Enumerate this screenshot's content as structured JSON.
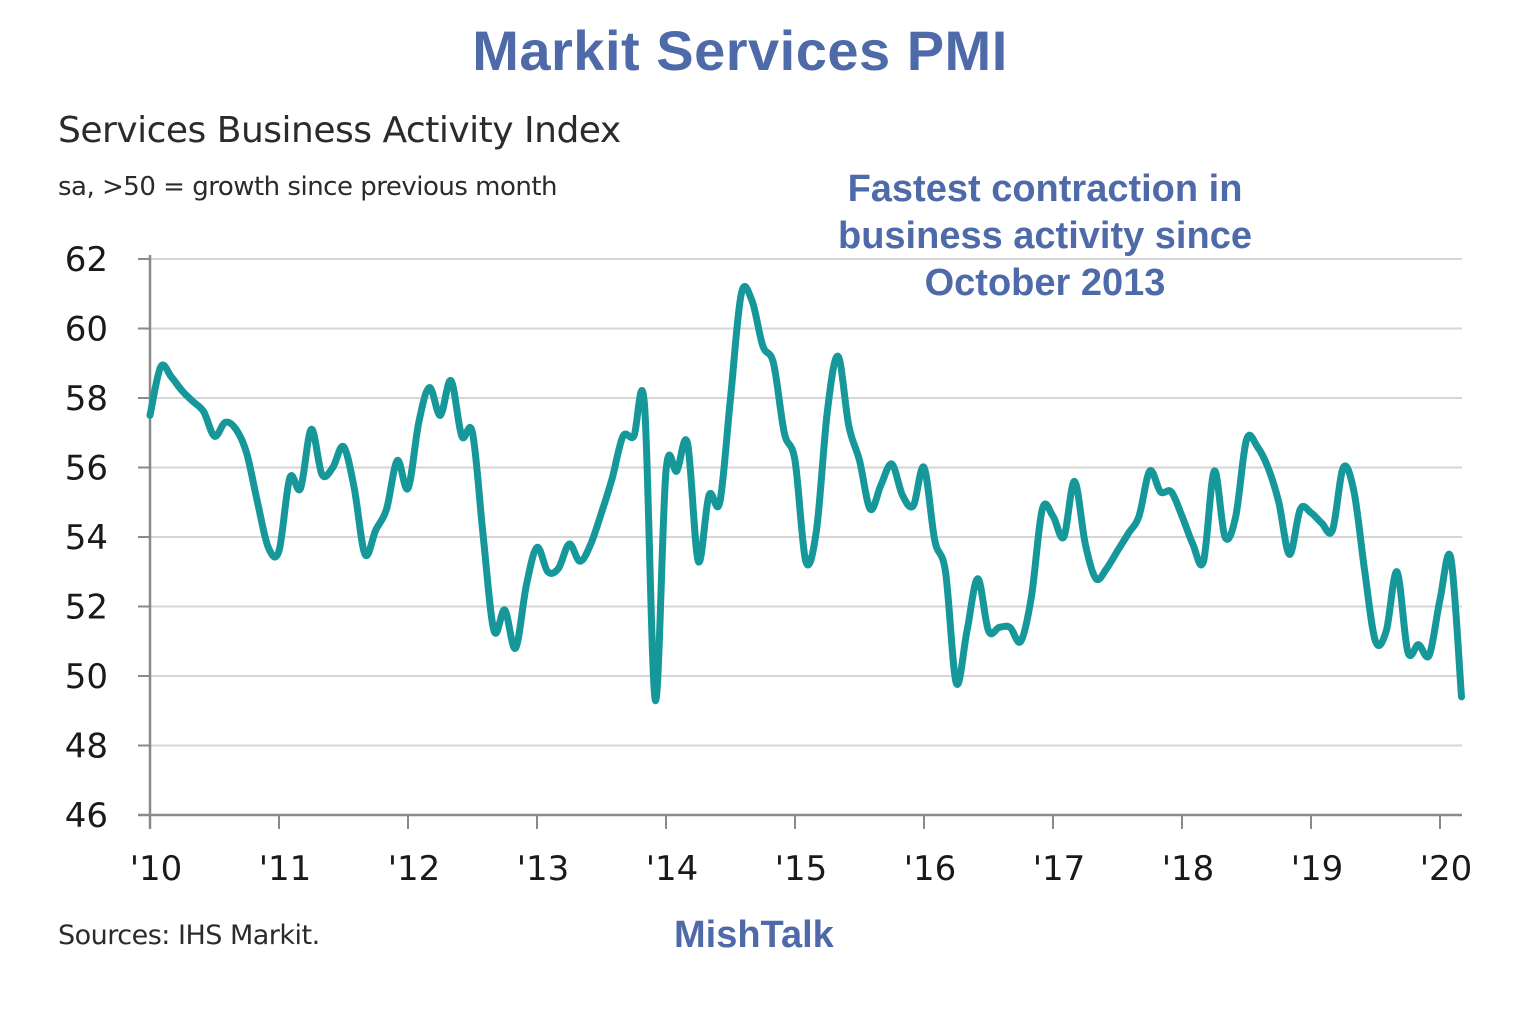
{
  "header": {
    "title": "Markit Services PMI"
  },
  "chart_data": {
    "type": "line",
    "title": "Services Business Activity Index",
    "subtitle": "sa, >50 = growth since previous month",
    "annotation": [
      "Fastest contraction in",
      "business activity since",
      "October 2013"
    ],
    "source": "Sources: IHS Markit.",
    "watermark": "MishTalk",
    "xlabel": "",
    "ylabel": "",
    "ylim": [
      46,
      62
    ],
    "yticks": [
      62,
      60,
      58,
      56,
      54,
      52,
      50,
      48,
      46
    ],
    "grid": true,
    "legend": "none",
    "x_start": "2010-01",
    "x_frequency": "monthly",
    "xtick_labels": [
      "'10",
      "'11",
      "'12",
      "'13",
      "'14",
      "'15",
      "'16",
      "'17",
      "'18",
      "'19",
      "'20"
    ],
    "line_color": "#16989a",
    "series": [
      {
        "name": "Services Business Activity Index",
        "values": [
          57.5,
          58.9,
          58.6,
          58.2,
          57.9,
          57.6,
          56.9,
          57.3,
          57.1,
          56.4,
          55.0,
          53.7,
          53.6,
          55.7,
          55.4,
          57.1,
          55.8,
          56.0,
          56.6,
          55.4,
          53.5,
          54.2,
          54.8,
          56.2,
          55.4,
          57.3,
          58.3,
          57.5,
          58.5,
          56.9,
          57.0,
          54.0,
          51.3,
          51.9,
          50.8,
          52.6,
          53.7,
          53.0,
          53.1,
          53.8,
          53.3,
          53.8,
          54.7,
          55.7,
          56.9,
          56.9,
          57.8,
          49.3,
          55.9,
          55.9,
          56.7,
          53.3,
          55.2,
          55.0,
          58.0,
          61.0,
          60.8,
          59.5,
          59.0,
          57.0,
          56.2,
          53.3,
          54.2,
          57.6,
          59.2,
          57.2,
          56.2,
          54.8,
          55.5,
          56.1,
          55.2,
          54.9,
          56.0,
          53.9,
          53.0,
          49.8,
          51.3,
          52.8,
          51.3,
          51.4,
          51.4,
          51.0,
          52.3,
          54.8,
          54.6,
          54.0,
          55.6,
          53.8,
          52.8,
          53.1,
          53.6,
          54.1,
          54.6,
          55.9,
          55.3,
          55.3,
          54.6,
          53.8,
          53.3,
          55.9,
          54.0,
          54.6,
          56.8,
          56.6,
          56.0,
          55.0,
          53.5,
          54.8,
          54.7,
          54.4,
          54.2,
          56.0,
          55.3,
          53.0,
          51.0,
          51.3,
          53.0,
          50.7,
          50.9,
          50.6,
          52.2,
          53.4,
          49.4
        ]
      }
    ]
  }
}
